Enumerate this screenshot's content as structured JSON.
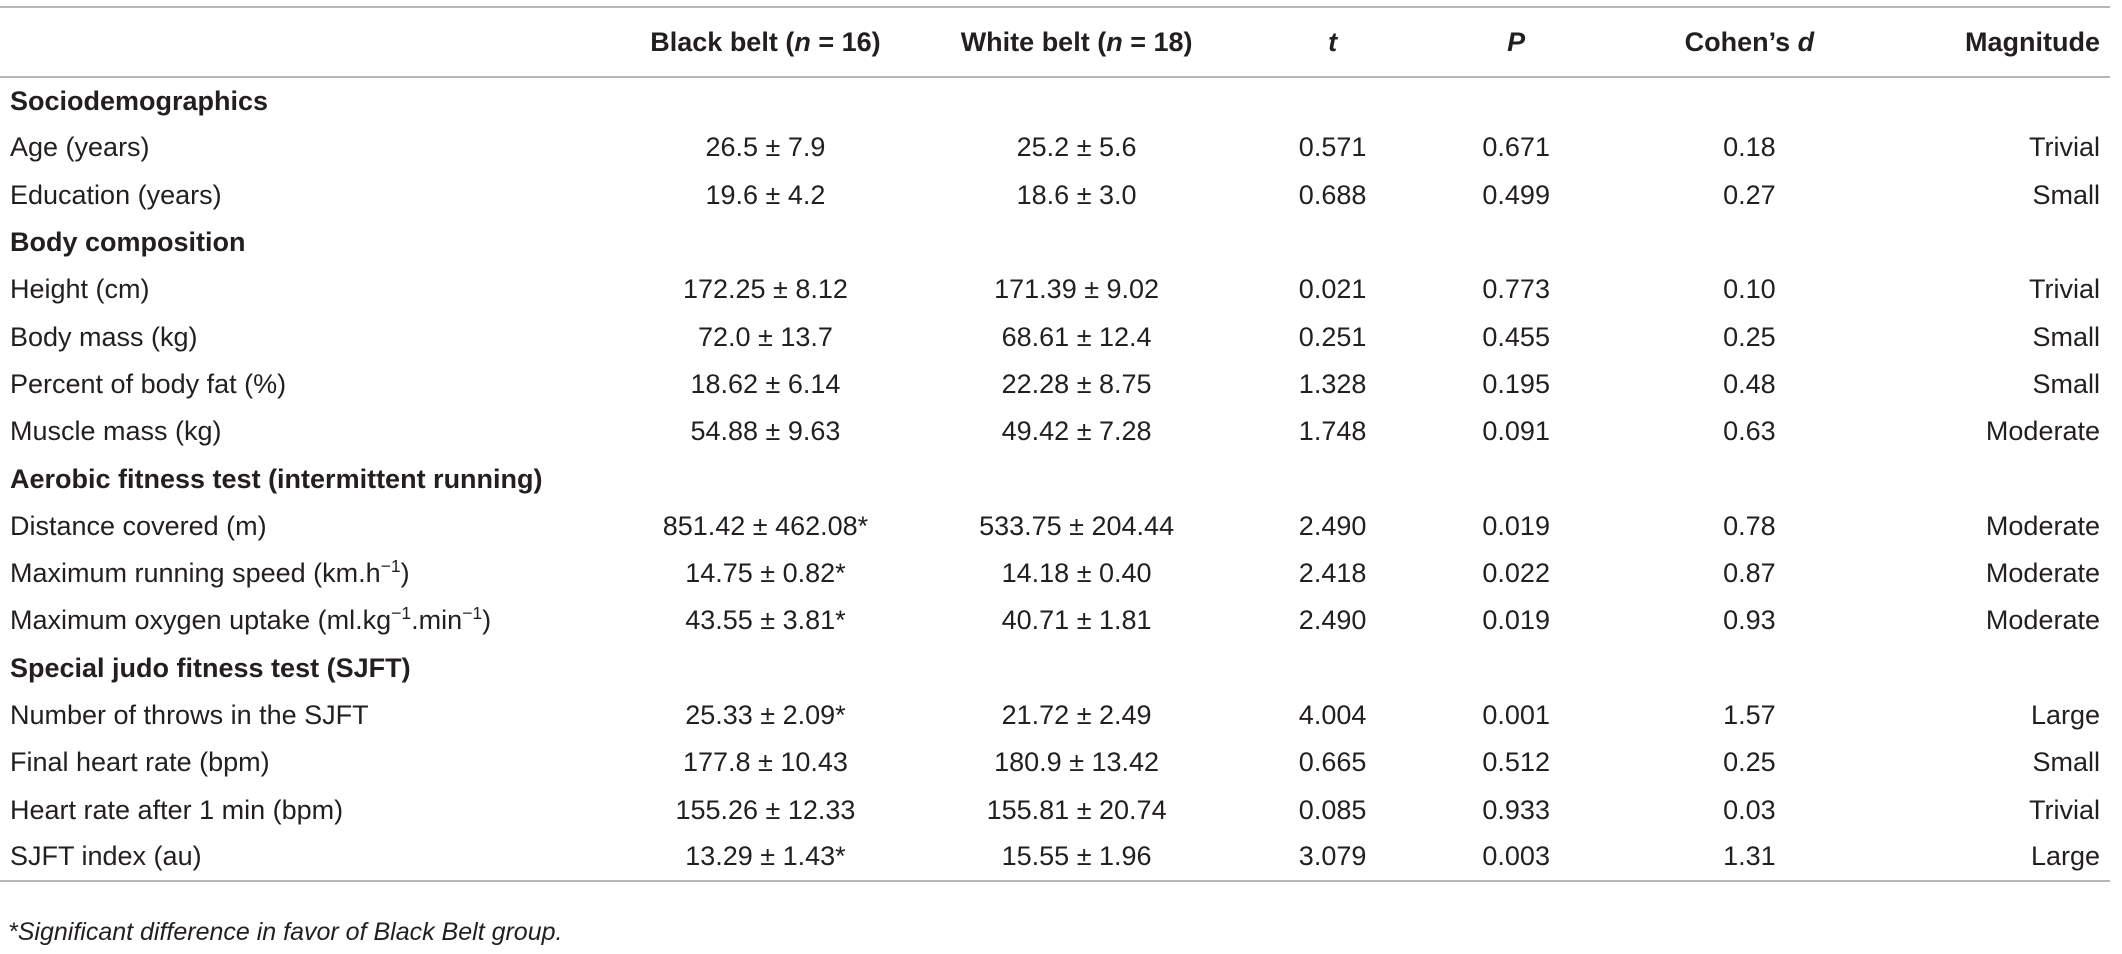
{
  "header": {
    "col_label": "",
    "black_belt": {
      "pre": "Black belt (",
      "n": "n",
      "post": " = 16)"
    },
    "white_belt": {
      "pre": "White belt (",
      "n": "n",
      "post": " = 18)"
    },
    "t": "t",
    "p": "P",
    "cohens": {
      "pre": "Cohen’s ",
      "d": "d"
    },
    "magnitude": "Magnitude"
  },
  "sections": [
    {
      "title": "Sociodemographics",
      "rows": [
        {
          "label": "Age (years)",
          "black": "26.5 ± 7.9",
          "white": "25.2 ± 5.6",
          "t": "0.571",
          "p": "0.671",
          "d": "0.18",
          "magnitude": "Trivial"
        },
        {
          "label": "Education (years)",
          "black": "19.6 ± 4.2",
          "white": "18.6 ± 3.0",
          "t": "0.688",
          "p": "0.499",
          "d": "0.27",
          "magnitude": "Small"
        }
      ]
    },
    {
      "title": "Body composition",
      "rows": [
        {
          "label": "Height (cm)",
          "black": "172.25 ± 8.12",
          "white": "171.39 ± 9.02",
          "t": "0.021",
          "p": "0.773",
          "d": "0.10",
          "magnitude": "Trivial"
        },
        {
          "label": "Body mass (kg)",
          "black": "72.0 ± 13.7",
          "white": "68.61 ± 12.4",
          "t": "0.251",
          "p": "0.455",
          "d": "0.25",
          "magnitude": "Small"
        },
        {
          "label": "Percent of body fat (%)",
          "black": "18.62 ± 6.14",
          "white": "22.28 ± 8.75",
          "t": "1.328",
          "p": "0.195",
          "d": "0.48",
          "magnitude": "Small"
        },
        {
          "label": "Muscle mass (kg)",
          "black": "54.88 ± 9.63",
          "white": "49.42 ± 7.28",
          "t": "1.748",
          "p": "0.091",
          "d": "0.63",
          "magnitude": "Moderate"
        }
      ]
    },
    {
      "title": "Aerobic fitness test (intermittent running)",
      "rows": [
        {
          "label": "Distance covered (m)",
          "black": "851.42 ± 462.08*",
          "white": "533.75 ± 204.44",
          "t": "2.490",
          "p": "0.019",
          "d": "0.78",
          "magnitude": "Moderate"
        },
        {
          "label": "Maximum running speed (km.h",
          "label_sup": "−1",
          "label_post": ")",
          "black": "14.75 ± 0.82*",
          "white": "14.18 ± 0.40",
          "t": "2.418",
          "p": "0.022",
          "d": "0.87",
          "magnitude": "Moderate"
        },
        {
          "label": "Maximum oxygen uptake (ml.kg",
          "label_sup": "−1",
          "label_mid": ".min",
          "label_sup2": "−1",
          "label_post": ")",
          "black": "43.55 ± 3.81*",
          "white": "40.71 ± 1.81",
          "t": "2.490",
          "p": "0.019",
          "d": "0.93",
          "magnitude": "Moderate"
        }
      ]
    },
    {
      "title": "Special judo fitness test (SJFT)",
      "rows": [
        {
          "label": "Number of throws in the SJFT",
          "black": "25.33 ± 2.09*",
          "white": "21.72 ± 2.49",
          "t": "4.004",
          "p": "0.001",
          "d": "1.57",
          "magnitude": "Large"
        },
        {
          "label": "Final heart rate (bpm)",
          "black": "177.8 ± 10.43",
          "white": "180.9 ± 13.42",
          "t": "0.665",
          "p": "0.512",
          "d": "0.25",
          "magnitude": "Small"
        },
        {
          "label": "Heart rate after 1 min (bpm)",
          "black": "155.26 ± 12.33",
          "white": "155.81 ± 20.74",
          "t": "0.085",
          "p": "0.933",
          "d": "0.03",
          "magnitude": "Trivial"
        },
        {
          "label": "SJFT index (au)",
          "black": "13.29 ± 1.43*",
          "white": "15.55 ± 1.96",
          "t": "3.079",
          "p": "0.003",
          "d": "1.31",
          "magnitude": "Large"
        }
      ]
    }
  ],
  "footnote": "*Significant difference in favor of Black Belt group."
}
